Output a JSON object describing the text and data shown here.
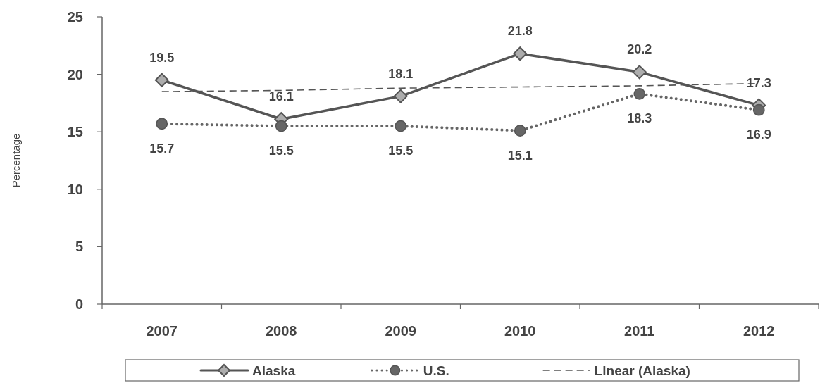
{
  "chart_data": {
    "type": "line",
    "ylabel": "Percentage",
    "categories": [
      "2007",
      "2008",
      "2009",
      "2010",
      "2011",
      "2012"
    ],
    "ylim": [
      0,
      25
    ],
    "yticks": [
      0,
      5,
      10,
      15,
      20,
      25
    ],
    "legend": "bottom",
    "series": [
      {
        "name": "Alaska",
        "color": "#555555",
        "marker": "diamond",
        "line_style": "solid",
        "values": [
          19.5,
          16.1,
          18.1,
          21.8,
          20.2,
          17.3
        ],
        "value_labels": [
          "19.5",
          "16.1",
          "18.1",
          "21.8",
          "20.2",
          "17.3"
        ]
      },
      {
        "name": "U.S.",
        "color": "#666666",
        "marker": "circle",
        "line_style": "dotted",
        "values": [
          15.7,
          15.5,
          15.5,
          15.1,
          18.3,
          16.9
        ],
        "value_labels": [
          "15.7",
          "15.5",
          "15.5",
          "15.1",
          "18.3",
          "16.9"
        ]
      },
      {
        "name": "Linear (Alaska)",
        "type": "line",
        "color": "#555555",
        "marker": "none",
        "line_style": "dashed",
        "values": [
          18.5,
          18.6,
          18.8,
          18.9,
          19.0,
          19.2
        ]
      }
    ]
  }
}
